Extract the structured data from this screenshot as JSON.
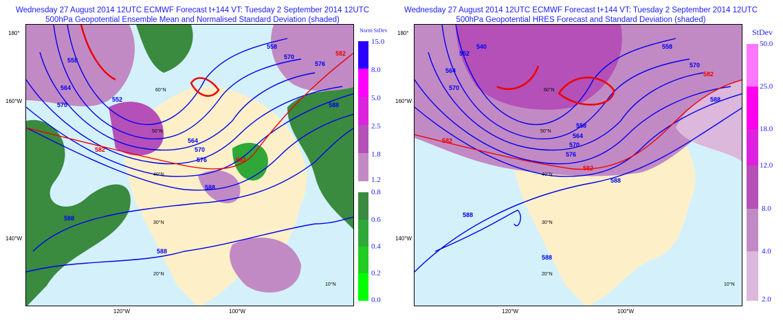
{
  "left": {
    "title_line1": "Wednesday 27 August 2014 12UTC ECMWF Forecast t+144  VT: Tuesday 2 September 2014 12UTC",
    "title_line2": "500hPa Geopotential Ensemble Mean and Normalised Standard Deviation (shaded)",
    "legend_title": "Norm StDev",
    "legend_upper": [
      {
        "value": "15.0",
        "color": "#2a00ff"
      },
      {
        "value": "8.0",
        "color": "#ff00ff"
      },
      {
        "value": "5.0",
        "color": "#dd22dd"
      },
      {
        "value": "2.5",
        "color": "#b450b8"
      },
      {
        "value": "1.8",
        "color": "#c28ac4"
      },
      {
        "value": "1.2",
        "color": ""
      }
    ],
    "legend_lower": [
      {
        "value": "0.8",
        "color": "#3a8a40"
      },
      {
        "value": "0.6",
        "color": "#2fa838"
      },
      {
        "value": "0.4",
        "color": "#22cc22"
      },
      {
        "value": "0.2",
        "color": "#00ff00"
      },
      {
        "value": "0.0",
        "color": ""
      }
    ]
  },
  "right": {
    "title_line1": "Wednesday 27 August 2014 12UTC ECMWF Forecast t+144  VT: Tuesday 2 September 2014 12UTC",
    "title_line2": "500hPa Geopotential HRES Forecast and Standard Deviation (shaded)",
    "legend_title": "StDev",
    "legend": [
      {
        "value": "50.0",
        "color": "#ff77ff"
      },
      {
        "value": "25.0",
        "color": "#ff00ee"
      },
      {
        "value": "18.0",
        "color": "#dd22dd"
      },
      {
        "value": "12.0",
        "color": "#b450b8"
      },
      {
        "value": "8.0",
        "color": "#c28ac4"
      },
      {
        "value": "4.0",
        "color": "#dcb8dc"
      },
      {
        "value": "2.0",
        "color": ""
      }
    ]
  },
  "axes": {
    "lon": [
      "180°",
      "160°W",
      "140°W",
      "120°W",
      "100°W"
    ],
    "lat": [
      "60°N",
      "50°N",
      "40°N",
      "30°N",
      "20°N",
      "10°N"
    ]
  },
  "contours": [
    "540",
    "552",
    "558",
    "564",
    "570",
    "576",
    "582",
    "588"
  ]
}
